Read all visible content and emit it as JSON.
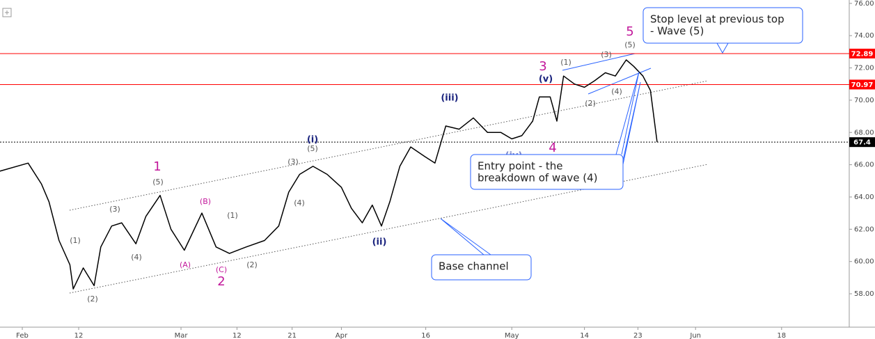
{
  "chart_data": {
    "type": "line",
    "color": "#000000",
    "x": [
      -2.7,
      0.7,
      2.3,
      3.2,
      4.4,
      5.7,
      6.1,
      7.3,
      8.6,
      9.4,
      10.7,
      11.9,
      13.6,
      14.8,
      16.5,
      17.8,
      19.4,
      21.5,
      23.2,
      24.8,
      26.8,
      29,
      30.7,
      31.9,
      33.2,
      34.8,
      36.5,
      38.2,
      39.4,
      40.7,
      41.9,
      43,
      44,
      45.2,
      46.5,
      48.2,
      49.4,
      50.7,
      52.3,
      54,
      55.7,
      57.3,
      58.6,
      59.8,
      61.1,
      61.9,
      63.2,
      64,
      64.8,
      66.1,
      67.3,
      68.5,
      69.8,
      71,
      72.3,
      73.2,
      74.3,
      75.2,
      76
    ],
    "values": [
      65.6,
      66.1,
      64.8,
      63.7,
      61.3,
      59.8,
      58.3,
      59.6,
      58.5,
      60.9,
      62.2,
      62.4,
      61.1,
      62.8,
      64.1,
      62,
      60.7,
      63,
      60.9,
      60.5,
      60.9,
      61.3,
      62.2,
      64.3,
      65.4,
      65.9,
      65.4,
      64.6,
      63.3,
      62.4,
      63.5,
      62.2,
      63.7,
      65.9,
      67.1,
      66.5,
      66.1,
      68.4,
      68.2,
      68.9,
      68,
      68,
      67.6,
      67.8,
      68.7,
      70.2,
      70.2,
      68.7,
      71.5,
      71,
      70.8,
      71.2,
      71.7,
      71.5,
      72.5,
      72.1,
      71.5,
      70.6,
      67.4
    ],
    "xlim": [
      -2.67,
      99
    ],
    "xticks": [
      {
        "value": 0,
        "label": "Feb"
      },
      {
        "value": 6.75,
        "label": "12"
      },
      {
        "value": 19,
        "label": "Mar"
      },
      {
        "value": 25.7,
        "label": "12"
      },
      {
        "value": 32.3,
        "label": "21"
      },
      {
        "value": 38.2,
        "label": "Apr"
      },
      {
        "value": 48.3,
        "label": "16"
      },
      {
        "value": 58.6,
        "label": "May"
      },
      {
        "value": 67.3,
        "label": "14"
      },
      {
        "value": 73.7,
        "label": "23"
      },
      {
        "value": 80.6,
        "label": "Jun"
      },
      {
        "value": 90.9,
        "label": "18"
      }
    ],
    "ylim": [
      55.93,
      76.21
    ],
    "yticks": [
      {
        "value": 58,
        "label": "58.00"
      },
      {
        "value": 60,
        "label": "60.00"
      },
      {
        "value": 62,
        "label": "62.00"
      },
      {
        "value": 64,
        "label": "64.00"
      },
      {
        "value": 66,
        "label": "66.00"
      },
      {
        "value": 68,
        "label": "68.00"
      },
      {
        "value": 70,
        "label": "70.00"
      },
      {
        "value": 72,
        "label": "72.00"
      },
      {
        "value": 74,
        "label": "74.00"
      },
      {
        "value": 76,
        "label": "76.00"
      }
    ],
    "hlines": [
      {
        "value": 72.89,
        "color": "#ff0000"
      },
      {
        "value": 70.97,
        "color": "#ff0000"
      },
      {
        "value": 67.4,
        "color": "#000000"
      }
    ],
    "annotations": [
      {
        "text": "1",
        "color": "#c2189b"
      },
      {
        "text": "(5)",
        "color": "#555555"
      },
      {
        "text": "(3)",
        "color": "#555555"
      },
      {
        "text": "(1)",
        "color": "#555555"
      },
      {
        "text": "(4)",
        "color": "#555555"
      },
      {
        "text": "(2)",
        "color": "#555555"
      },
      {
        "text": "(B)",
        "color": "#c2189b"
      },
      {
        "text": "(A)",
        "color": "#c2189b"
      },
      {
        "text": "(C)",
        "color": "#c2189b"
      },
      {
        "text": "2",
        "color": "#c2189b"
      },
      {
        "text": "(1)",
        "color": "#555555"
      },
      {
        "text": "(2)",
        "color": "#555555"
      },
      {
        "text": "(3)",
        "color": "#555555"
      },
      {
        "text": "(4)",
        "color": "#555555"
      },
      {
        "text": "(i)",
        "color": "#1a237e"
      },
      {
        "text": "(5)",
        "color": "#555555"
      },
      {
        "text": "(ii)",
        "color": "#1a237e"
      },
      {
        "text": "(iii)",
        "color": "#1a237e"
      },
      {
        "text": "(iv)",
        "color": "#7986cb"
      },
      {
        "text": "4",
        "color": "#c2189b"
      },
      {
        "text": "3",
        "color": "#c2189b"
      },
      {
        "text": "(v)",
        "color": "#1a237e"
      },
      {
        "text": "(1)",
        "color": "#555555"
      },
      {
        "text": "(2)",
        "color": "#555555"
      },
      {
        "text": "(3)",
        "color": "#555555"
      },
      {
        "text": "(4)",
        "color": "#555555"
      },
      {
        "text": "(5)",
        "color": "#555555"
      },
      {
        "text": "5",
        "color": "#c2189b"
      }
    ],
    "callouts": [
      {
        "lines": [
          "Stop level at previous top",
          "- Wave (5)"
        ]
      },
      {
        "lines": [
          "Entry point - the",
          "breakdown of wave (4)"
        ]
      },
      {
        "lines": [
          "Base channel"
        ]
      }
    ]
  }
}
